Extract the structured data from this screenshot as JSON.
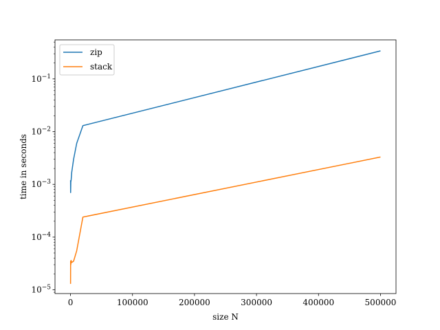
{
  "chart_data": {
    "type": "line",
    "title": "",
    "xlabel": "size N",
    "ylabel": "time in seconds",
    "y_scale": "log",
    "xlim": [
      -25000,
      525000
    ],
    "ylim": [
      8.5e-06,
      0.55
    ],
    "grid": false,
    "legend_position": "top-left",
    "x_ticks": [
      {
        "value": 0,
        "label": "0"
      },
      {
        "value": 100000,
        "label": "100000"
      },
      {
        "value": 200000,
        "label": "200000"
      },
      {
        "value": 300000,
        "label": "300000"
      },
      {
        "value": 400000,
        "label": "400000"
      },
      {
        "value": 500000,
        "label": "500000"
      }
    ],
    "y_ticks": [
      {
        "value": 1e-05,
        "base": "10",
        "exp": "−5"
      },
      {
        "value": 0.0001,
        "base": "10",
        "exp": "−4"
      },
      {
        "value": 0.001,
        "base": "10",
        "exp": "−3"
      },
      {
        "value": 0.01,
        "base": "10",
        "exp": "−2"
      },
      {
        "value": 0.1,
        "base": "10",
        "exp": "−1"
      }
    ],
    "series": [
      {
        "name": "zip",
        "color": "#1f77b4",
        "x": [
          100,
          200,
          500,
          1000,
          2000,
          5000,
          10000,
          20000,
          500000
        ],
        "y": [
          0.0012,
          0.0007,
          0.0011,
          0.0012,
          0.0017,
          0.003,
          0.006,
          0.013,
          0.34
        ]
      },
      {
        "name": "stack",
        "color": "#ff7f0e",
        "x": [
          100,
          200,
          500,
          1000,
          2000,
          5000,
          10000,
          20000,
          500000
        ],
        "y": [
          1.3e-05,
          3.5e-05,
          3e-05,
          3.6e-05,
          3.3e-05,
          3.5e-05,
          5.5e-05,
          0.00024,
          0.0033
        ]
      }
    ]
  }
}
